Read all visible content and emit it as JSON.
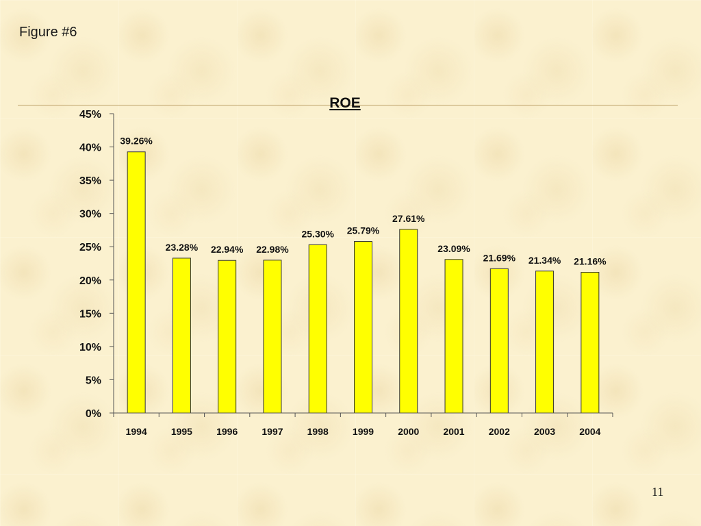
{
  "slide": {
    "figure_label": "Figure #6",
    "page_number": "11"
  },
  "colors": {
    "bar_fill": "#ffff00",
    "bar_stroke": "#333333",
    "axis": "#555555"
  },
  "chart_data": {
    "type": "bar",
    "title": "ROE",
    "xlabel": "",
    "ylabel": "",
    "categories": [
      "1994",
      "1995",
      "1996",
      "1997",
      "1998",
      "1999",
      "2000",
      "2001",
      "2002",
      "2003",
      "2004"
    ],
    "values": [
      39.26,
      23.28,
      22.94,
      22.98,
      25.3,
      25.79,
      27.61,
      23.09,
      21.69,
      21.34,
      21.16
    ],
    "data_labels": [
      "39.26%",
      "23.28%",
      "22.94%",
      "22.98%",
      "25.30%",
      "25.79%",
      "27.61%",
      "23.09%",
      "21.69%",
      "21.34%",
      "21.16%"
    ],
    "ylim": [
      0,
      45
    ],
    "yticks": [
      0,
      5,
      10,
      15,
      20,
      25,
      30,
      35,
      40,
      45
    ],
    "ytick_labels": [
      "0%",
      "5%",
      "10%",
      "15%",
      "20%",
      "25%",
      "30%",
      "35%",
      "40%",
      "45%"
    ],
    "grid": false,
    "legend": "none"
  }
}
